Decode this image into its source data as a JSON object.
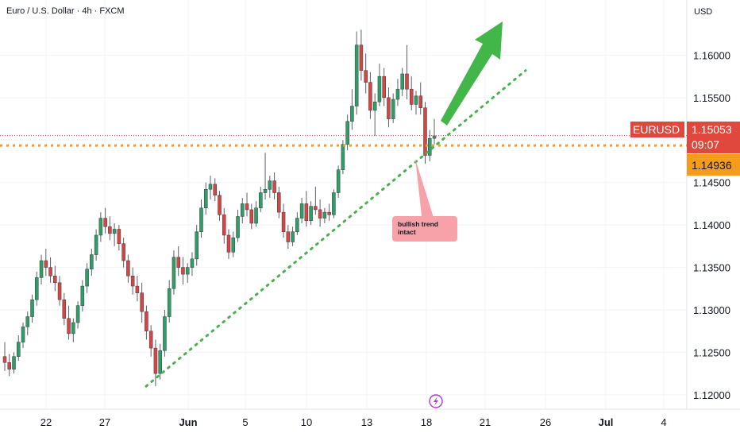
{
  "header": {
    "symbol_title": "Euro / U.S. Dollar · 4h · FXCM",
    "currency": "USD"
  },
  "colors": {
    "up": "#26a69a",
    "up_body": "#2e9e66",
    "down": "#ef5350",
    "down_body": "#d64541",
    "trendline": "#4caf50",
    "level": "#f59c1a",
    "arrow": "#43b649",
    "badge_red": "#e0483d",
    "badge_orange": "#f59c1a",
    "callout": "#f6a2a8"
  },
  "price_axis": {
    "ticks": [
      "1.16000",
      "1.15500",
      "1.15000",
      "1.14500",
      "1.14000",
      "1.13500",
      "1.13000",
      "1.12500",
      "1.12000"
    ],
    "symbol_badge": "EURUSD",
    "last_price": "1.15053",
    "countdown": "09:07",
    "level_price": "1.14936"
  },
  "time_axis": {
    "ticks": [
      "22",
      "27",
      "Jun",
      "5",
      "10",
      "13",
      "18",
      "21",
      "26",
      "Jul",
      "4"
    ]
  },
  "annotation": {
    "line1": "bullish trend",
    "line2": "intact"
  },
  "chart_data": {
    "type": "candlestick",
    "title": "Euro / U.S. Dollar · 4h · FXCM",
    "unit": "USD",
    "ylim": [
      1.1183,
      1.1665
    ],
    "x_tick_labels": [
      "22",
      "27",
      "Jun",
      "5",
      "10",
      "13",
      "18",
      "21",
      "26",
      "Jul",
      "4"
    ],
    "last_price": 1.15053,
    "horizontal_level": 1.14936,
    "trendline": {
      "from_price": 1.121,
      "to_price": 1.1582,
      "style": "dotted"
    },
    "candles": [
      [
        1.1245,
        1.1262,
        1.1228,
        1.1238
      ],
      [
        1.1238,
        1.1248,
        1.1222,
        1.123
      ],
      [
        1.123,
        1.125,
        1.1225,
        1.1245
      ],
      [
        1.1245,
        1.127,
        1.124,
        1.1262
      ],
      [
        1.1262,
        1.1285,
        1.1255,
        1.128
      ],
      [
        1.128,
        1.1298,
        1.127,
        1.1292
      ],
      [
        1.1292,
        1.1318,
        1.1285,
        1.1312
      ],
      [
        1.1312,
        1.1345,
        1.1305,
        1.1338
      ],
      [
        1.1338,
        1.1365,
        1.133,
        1.1358
      ],
      [
        1.1358,
        1.1372,
        1.134,
        1.135
      ],
      [
        1.135,
        1.1362,
        1.1332,
        1.134
      ],
      [
        1.134,
        1.1352,
        1.1322,
        1.1332
      ],
      [
        1.1332,
        1.134,
        1.1305,
        1.1312
      ],
      [
        1.1312,
        1.132,
        1.1282,
        1.129
      ],
      [
        1.129,
        1.1305,
        1.1265,
        1.1272
      ],
      [
        1.1272,
        1.129,
        1.1262,
        1.1285
      ],
      [
        1.1285,
        1.131,
        1.1278,
        1.1305
      ],
      [
        1.1305,
        1.1335,
        1.1298,
        1.1328
      ],
      [
        1.1328,
        1.1355,
        1.132,
        1.1348
      ],
      [
        1.1348,
        1.1372,
        1.134,
        1.1365
      ],
      [
        1.1365,
        1.1395,
        1.1358,
        1.1388
      ],
      [
        1.1388,
        1.1415,
        1.138,
        1.1408
      ],
      [
        1.1408,
        1.142,
        1.139,
        1.1398
      ],
      [
        1.1398,
        1.141,
        1.1382,
        1.139
      ],
      [
        1.139,
        1.1402,
        1.1375,
        1.1395
      ],
      [
        1.1395,
        1.14,
        1.137,
        1.1378
      ],
      [
        1.1378,
        1.1385,
        1.135,
        1.1358
      ],
      [
        1.1358,
        1.1365,
        1.1332,
        1.134
      ],
      [
        1.134,
        1.135,
        1.1318,
        1.1328
      ],
      [
        1.1328,
        1.134,
        1.131,
        1.132
      ],
      [
        1.132,
        1.1332,
        1.1285,
        1.1298
      ],
      [
        1.1298,
        1.1305,
        1.1265,
        1.1275
      ],
      [
        1.1275,
        1.1282,
        1.1245,
        1.1255
      ],
      [
        1.1255,
        1.1265,
        1.121,
        1.1225
      ],
      [
        1.1225,
        1.126,
        1.1218,
        1.1252
      ],
      [
        1.1252,
        1.13,
        1.1245,
        1.1292
      ],
      [
        1.1292,
        1.1335,
        1.1285,
        1.1325
      ],
      [
        1.1325,
        1.137,
        1.1318,
        1.1362
      ],
      [
        1.1362,
        1.1375,
        1.134,
        1.135
      ],
      [
        1.135,
        1.1362,
        1.133,
        1.1342
      ],
      [
        1.1342,
        1.1355,
        1.1332,
        1.135
      ],
      [
        1.135,
        1.1368,
        1.134,
        1.136
      ],
      [
        1.136,
        1.14,
        1.1352,
        1.1392
      ],
      [
        1.1392,
        1.143,
        1.1385,
        1.142
      ],
      [
        1.142,
        1.145,
        1.1412,
        1.1442
      ],
      [
        1.1442,
        1.1458,
        1.143,
        1.1448
      ],
      [
        1.1448,
        1.1455,
        1.1428,
        1.1435
      ],
      [
        1.1435,
        1.144,
        1.1405,
        1.1412
      ],
      [
        1.1412,
        1.142,
        1.1378,
        1.1388
      ],
      [
        1.1388,
        1.1395,
        1.136,
        1.1368
      ],
      [
        1.1368,
        1.1392,
        1.1362,
        1.1385
      ],
      [
        1.1385,
        1.1418,
        1.138,
        1.141
      ],
      [
        1.141,
        1.1432,
        1.1402,
        1.1425
      ],
      [
        1.1425,
        1.1438,
        1.141,
        1.1418
      ],
      [
        1.1418,
        1.1425,
        1.1395,
        1.1402
      ],
      [
        1.1402,
        1.1428,
        1.1398,
        1.142
      ],
      [
        1.142,
        1.1445,
        1.1415,
        1.1438
      ],
      [
        1.1438,
        1.1485,
        1.143,
        1.1442
      ],
      [
        1.1442,
        1.1458,
        1.1432,
        1.1452
      ],
      [
        1.1452,
        1.1462,
        1.143,
        1.1438
      ],
      [
        1.1438,
        1.1445,
        1.1408,
        1.1415
      ],
      [
        1.1415,
        1.1425,
        1.1385,
        1.1392
      ],
      [
        1.1392,
        1.14,
        1.1372,
        1.138
      ],
      [
        1.138,
        1.1398,
        1.1375,
        1.1392
      ],
      [
        1.1392,
        1.1415,
        1.1388,
        1.1408
      ],
      [
        1.1408,
        1.1432,
        1.1402,
        1.1425
      ],
      [
        1.1425,
        1.144,
        1.1398,
        1.1405
      ],
      [
        1.1405,
        1.1428,
        1.14,
        1.1422
      ],
      [
        1.1422,
        1.1445,
        1.1412,
        1.1418
      ],
      [
        1.1418,
        1.143,
        1.1398,
        1.1408
      ],
      [
        1.1408,
        1.142,
        1.1402,
        1.1415
      ],
      [
        1.1415,
        1.1425,
        1.1405,
        1.1412
      ],
      [
        1.1412,
        1.1442,
        1.1408,
        1.1438
      ],
      [
        1.1438,
        1.147,
        1.1432,
        1.1465
      ],
      [
        1.1465,
        1.15,
        1.146,
        1.1495
      ],
      [
        1.1495,
        1.153,
        1.1488,
        1.1522
      ],
      [
        1.1522,
        1.156,
        1.1512,
        1.154
      ],
      [
        1.154,
        1.1628,
        1.153,
        1.1612
      ],
      [
        1.1612,
        1.163,
        1.157,
        1.1582
      ],
      [
        1.1582,
        1.1602,
        1.1555,
        1.1568
      ],
      [
        1.1568,
        1.158,
        1.1525,
        1.1535
      ],
      [
        1.1535,
        1.1555,
        1.1505,
        1.1545
      ],
      [
        1.1545,
        1.159,
        1.154,
        1.1575
      ],
      [
        1.1575,
        1.1585,
        1.154,
        1.155
      ],
      [
        1.155,
        1.1562,
        1.1515,
        1.1525
      ],
      [
        1.1525,
        1.1555,
        1.152,
        1.1548
      ],
      [
        1.1548,
        1.1572,
        1.154,
        1.156
      ],
      [
        1.156,
        1.1585,
        1.1552,
        1.1578
      ],
      [
        1.1578,
        1.1612,
        1.1548,
        1.156
      ],
      [
        1.156,
        1.1575,
        1.1535,
        1.1542
      ],
      [
        1.1542,
        1.1558,
        1.153,
        1.1552
      ],
      [
        1.1552,
        1.1568,
        1.153,
        1.1538
      ],
      [
        1.1538,
        1.1545,
        1.1472,
        1.1482
      ],
      [
        1.1482,
        1.1512,
        1.1475,
        1.1502
      ],
      [
        1.1502,
        1.1525,
        1.1495,
        1.1505
      ]
    ]
  }
}
